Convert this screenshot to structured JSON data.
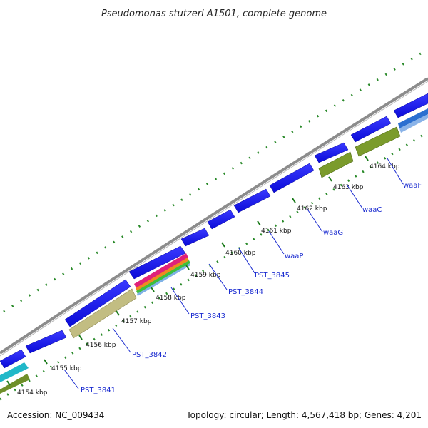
{
  "header": {
    "title": "Pseudomonas stutzeri A1501, complete genome"
  },
  "footer": {
    "accession": "Accession: NC_009434",
    "summary": "Topology: circular; Length: 4,567,418 bp; Genes: 4,201"
  },
  "scale": {
    "ticks": [
      "4154 kbp",
      "4155 kbp",
      "4156 kbp",
      "4157 kbp",
      "4158 kbp",
      "4159 kbp",
      "4160 kbp",
      "4161 kbp",
      "4162 kbp",
      "4163 kbp",
      "4164 kbp"
    ]
  },
  "genes": {
    "labels": [
      "PST_3841",
      "PST_3842",
      "PST_3843",
      "PST_3844",
      "PST_3845",
      "waaP",
      "waaG",
      "waaC",
      "waaF"
    ]
  },
  "colors": {
    "backbone": "#8c8c8c",
    "gene_forward": "#1a1aee",
    "cds_olive": "#7a9a2a",
    "cds_khaki": "#c4bf84",
    "gc_dots": "#2a8a2a"
  }
}
